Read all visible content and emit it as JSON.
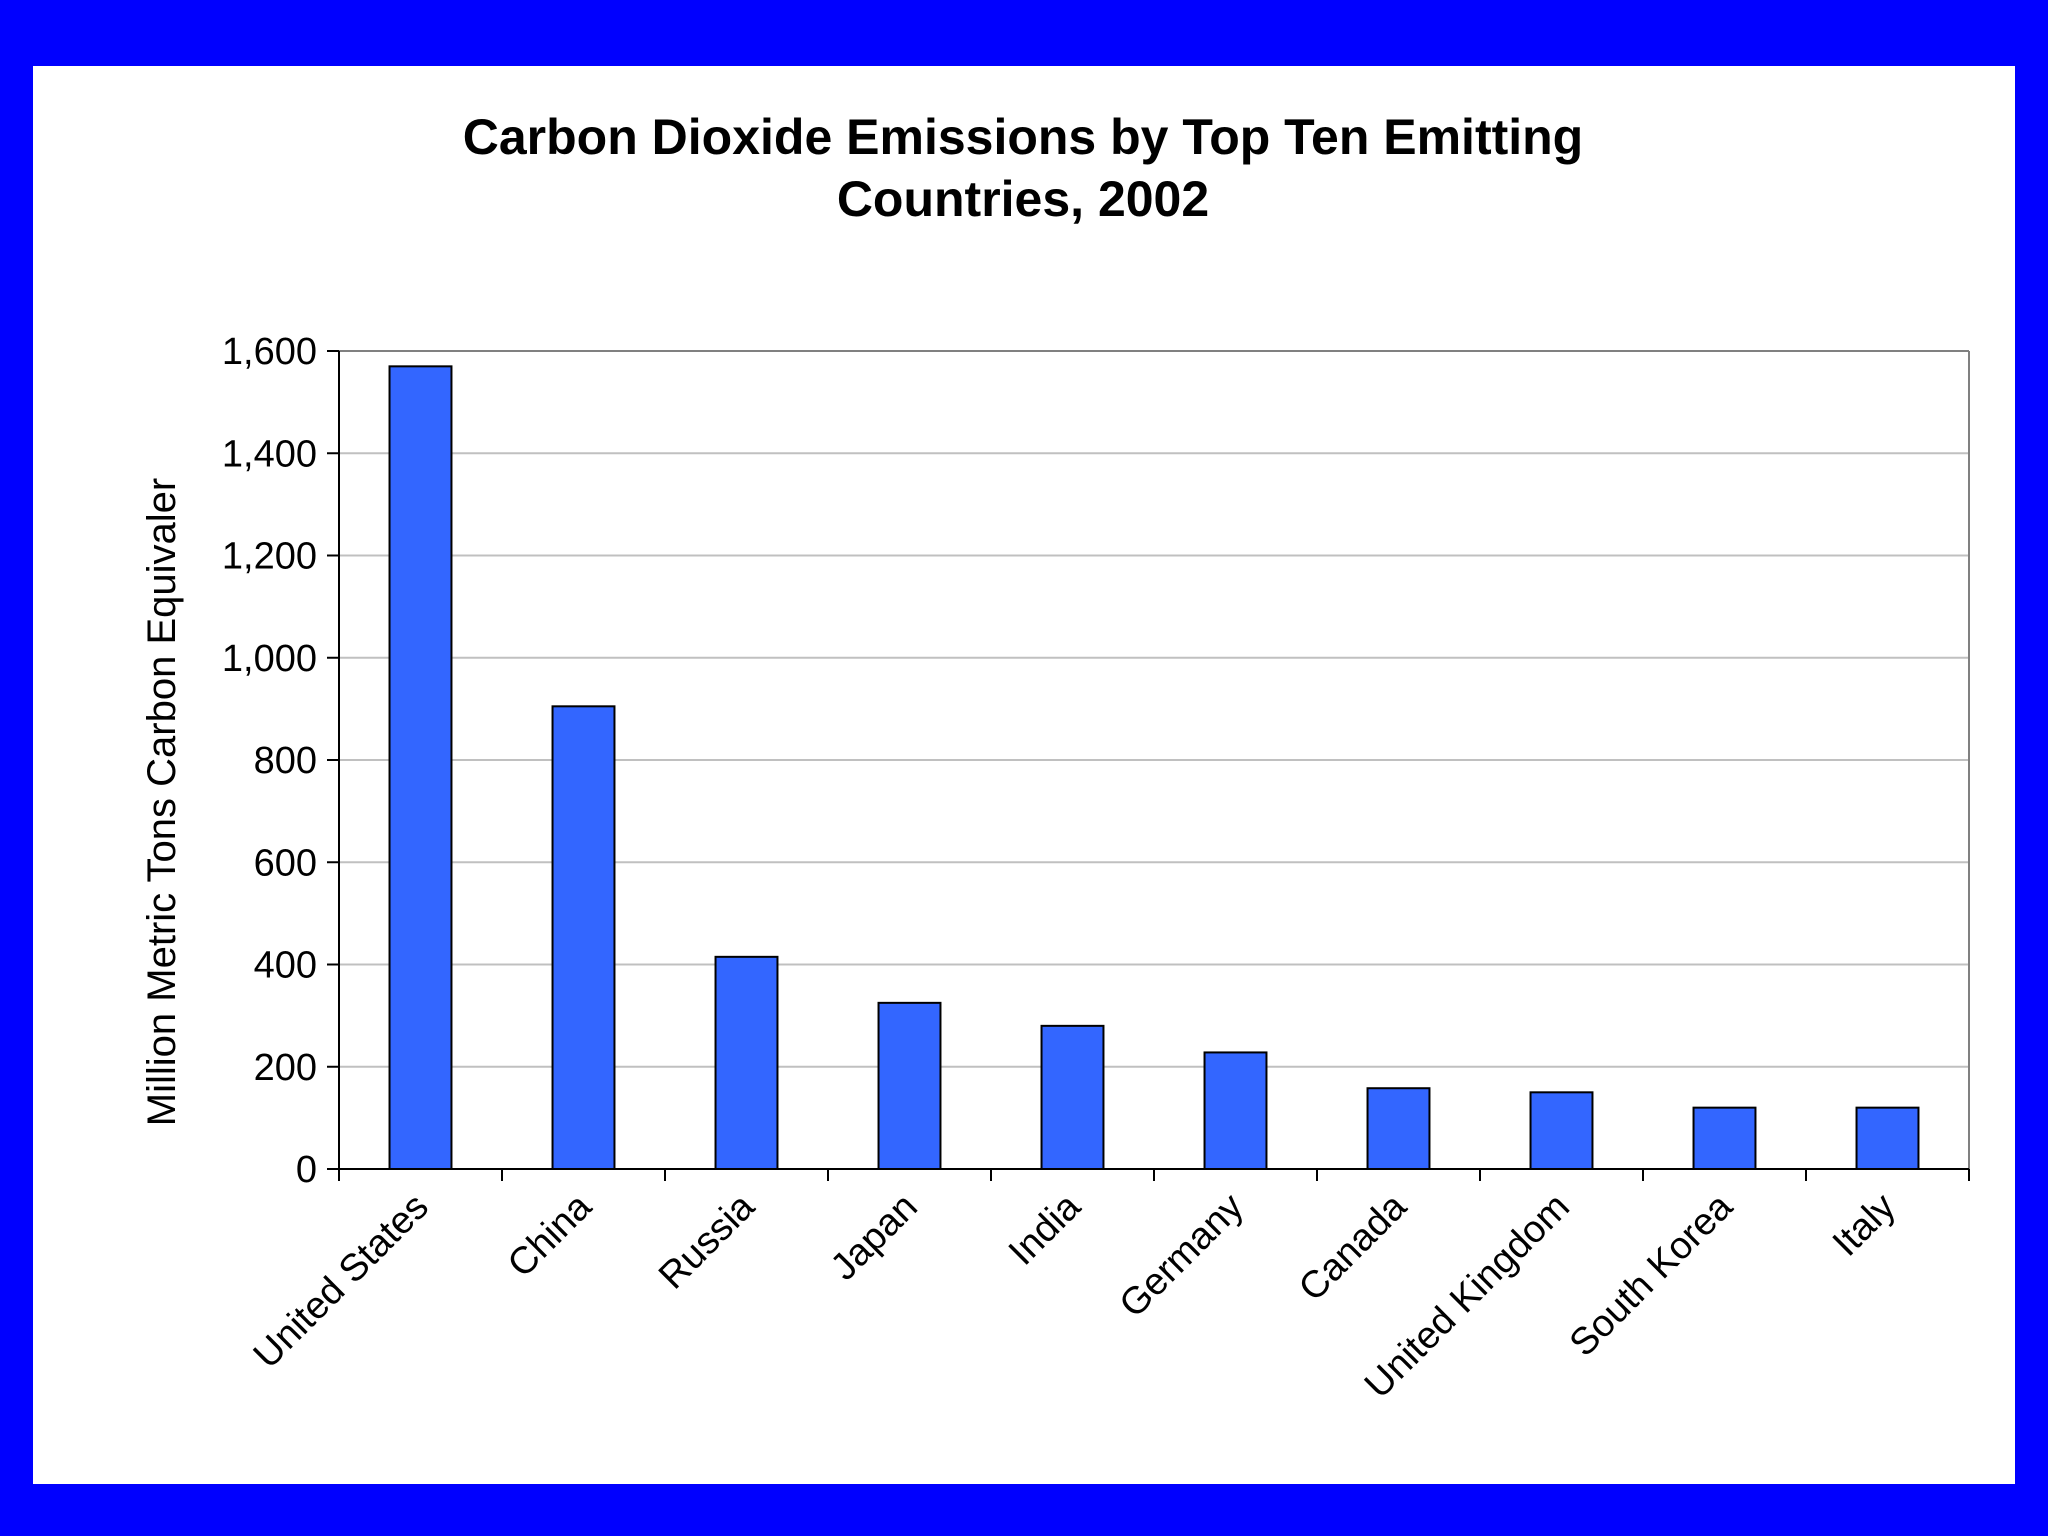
{
  "colors": {
    "background": "#0000ff",
    "panel": "#ffffff",
    "bar": "#3366ff",
    "gridline": "#c0c0c0",
    "axis": "#000000"
  },
  "chart_data": {
    "type": "bar",
    "title_lines": [
      "Carbon Dioxide Emissions by Top Ten Emitting",
      "Countries, 2002"
    ],
    "xlabel": "",
    "ylabel": "Million Metric Tons Carbon Equivaler",
    "categories": [
      "United States",
      "China",
      "Russia",
      "Japan",
      "India",
      "Germany",
      "Canada",
      "United Kingdom",
      "South Korea",
      "Italy"
    ],
    "values": [
      1570,
      905,
      415,
      325,
      280,
      228,
      158,
      150,
      120,
      120
    ],
    "ylim": [
      0,
      1600
    ],
    "yticks": [
      0,
      200,
      400,
      600,
      800,
      1000,
      1200,
      1400,
      1600
    ],
    "ytick_labels": [
      "0",
      "200",
      "400",
      "600",
      "800",
      "1,000",
      "1,200",
      "1,400",
      "1,600"
    ],
    "grid": true,
    "legend": "none"
  }
}
